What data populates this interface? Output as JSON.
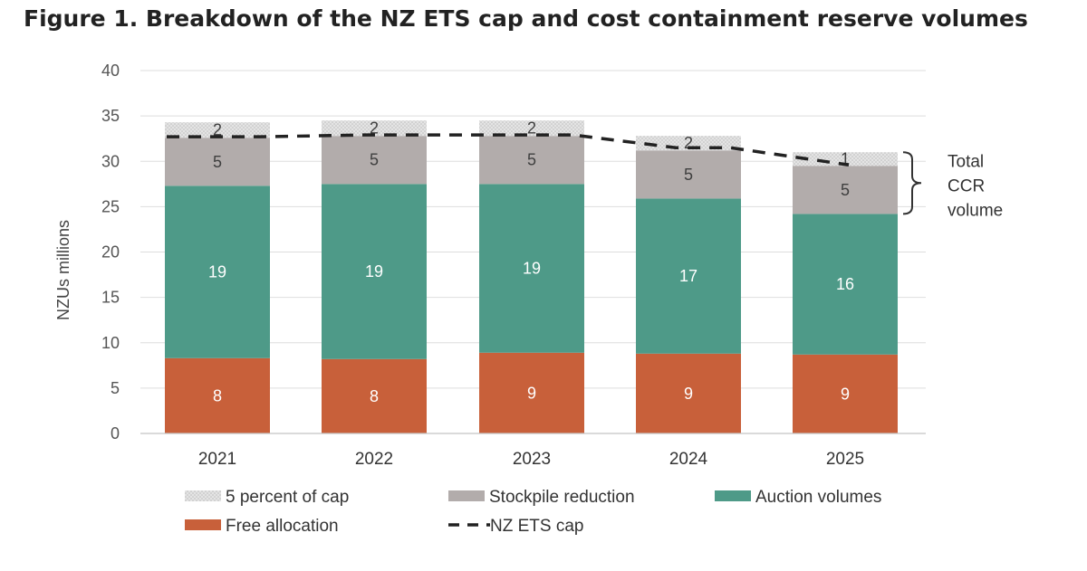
{
  "title": "Figure 1. Breakdown of the NZ ETS cap and cost containment reserve volumes",
  "chart_data": {
    "type": "bar",
    "stacked": true,
    "categories": [
      "2021",
      "2022",
      "2023",
      "2024",
      "2025"
    ],
    "series": [
      {
        "name": "Free allocation",
        "color": "#c8603a",
        "values": [
          8.3,
          8.2,
          8.9,
          8.8,
          8.7
        ],
        "labels": [
          "8",
          "8",
          "9",
          "9",
          "9"
        ]
      },
      {
        "name": "Auction volumes",
        "color": "#4e9a88",
        "values": [
          19.0,
          19.3,
          18.6,
          17.1,
          15.5
        ],
        "labels": [
          "19",
          "19",
          "19",
          "17",
          "16"
        ]
      },
      {
        "name": "Stockpile reduction",
        "color": "#b2acab",
        "values": [
          5.3,
          5.3,
          5.3,
          5.3,
          5.3
        ],
        "labels": [
          "5",
          "5",
          "5",
          "5",
          "5"
        ]
      },
      {
        "name": "5 percent of cap",
        "color": "#dcdcdc",
        "pattern": "dotted",
        "values": [
          1.7,
          1.7,
          1.7,
          1.6,
          1.5
        ],
        "labels": [
          "2",
          "2",
          "2",
          "2",
          "1"
        ]
      }
    ],
    "line_series": {
      "name": "NZ ETS cap",
      "style": "dashed",
      "color": "#222222",
      "x": [
        "2021",
        "2022",
        "2023",
        "2024",
        "2025"
      ],
      "values": [
        32.7,
        32.9,
        32.9,
        31.5,
        29.6
      ]
    },
    "ylabel": "NZUs millions",
    "xlabel": "",
    "ylim": [
      0,
      40
    ],
    "yticks": [
      0,
      5,
      10,
      15,
      20,
      25,
      30,
      35,
      40
    ],
    "grid": true,
    "legend_position": "bottom",
    "legend_order": [
      "5 percent of cap",
      "Stockpile reduction",
      "Auction volumes",
      "Free allocation",
      "NZ ETS cap"
    ],
    "annotation": {
      "text_lines": [
        "Total",
        "CCR",
        "volume"
      ],
      "applies_to": "2025",
      "spans_series": [
        "Stockpile reduction",
        "5 percent of cap"
      ]
    }
  }
}
